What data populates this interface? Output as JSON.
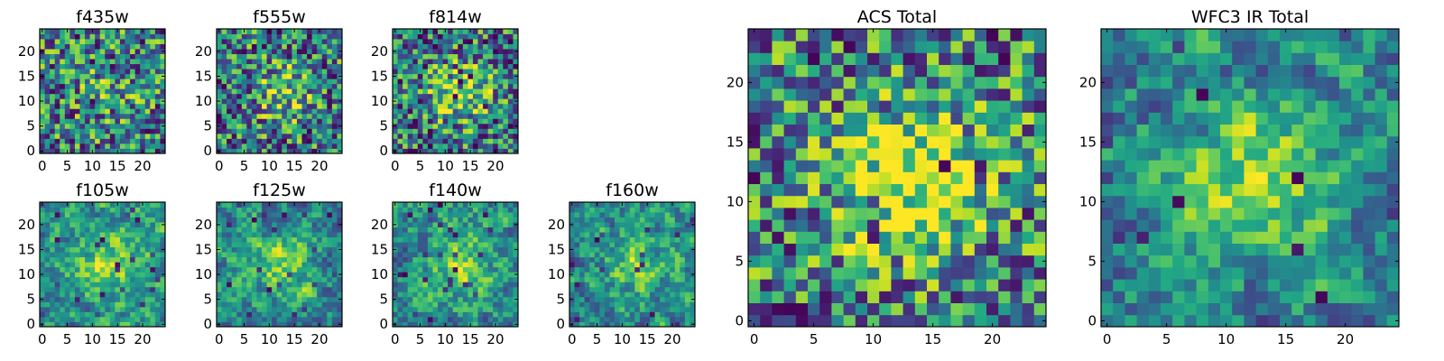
{
  "figure": {
    "description_colormap": "viridis"
  },
  "chart_data": [
    {
      "type": "heatmap",
      "title": "f435w",
      "grid_size": 25,
      "seed": 11,
      "smooth": 0,
      "blob": 0.15,
      "bias": 0.45,
      "dark_frac": 0.07,
      "xticks": [
        0,
        5,
        10,
        15,
        20
      ],
      "yticks": [
        0,
        5,
        10,
        15,
        20
      ],
      "xlim": [
        -0.5,
        24.5
      ],
      "ylim": [
        -0.5,
        24.5
      ]
    },
    {
      "type": "heatmap",
      "title": "f555w",
      "grid_size": 25,
      "seed": 23,
      "smooth": 0,
      "blob": 0.3,
      "bias": 0.42,
      "dark_frac": 0.07,
      "xticks": [
        0,
        5,
        10,
        15,
        20
      ],
      "yticks": [
        0,
        5,
        10,
        15,
        20
      ],
      "xlim": [
        -0.5,
        24.5
      ],
      "ylim": [
        -0.5,
        24.5
      ]
    },
    {
      "type": "heatmap",
      "title": "f814w",
      "grid_size": 25,
      "seed": 37,
      "smooth": 0,
      "blob": 0.45,
      "bias": 0.4,
      "dark_frac": 0.06,
      "xticks": [
        0,
        5,
        10,
        15,
        20
      ],
      "yticks": [
        0,
        5,
        10,
        15,
        20
      ],
      "xlim": [
        -0.5,
        24.5
      ],
      "ylim": [
        -0.5,
        24.5
      ]
    },
    {
      "type": "heatmap",
      "title": "f105w",
      "grid_size": 25,
      "seed": 41,
      "smooth": 1,
      "blob": 0.35,
      "bias": 0.5,
      "dark_frac": 0.03,
      "xticks": [
        0,
        5,
        10,
        15,
        20
      ],
      "yticks": [
        0,
        5,
        10,
        15,
        20
      ],
      "xlim": [
        -0.5,
        24.5
      ],
      "ylim": [
        -0.5,
        24.5
      ]
    },
    {
      "type": "heatmap",
      "title": "f125w",
      "grid_size": 25,
      "seed": 53,
      "smooth": 1,
      "blob": 0.3,
      "bias": 0.48,
      "dark_frac": 0.04,
      "xticks": [
        0,
        5,
        10,
        15,
        20
      ],
      "yticks": [
        0,
        5,
        10,
        15,
        20
      ],
      "xlim": [
        -0.5,
        24.5
      ],
      "ylim": [
        -0.5,
        24.5
      ]
    },
    {
      "type": "heatmap",
      "title": "f140w",
      "grid_size": 25,
      "seed": 67,
      "smooth": 1,
      "blob": 0.3,
      "bias": 0.5,
      "dark_frac": 0.03,
      "xticks": [
        0,
        5,
        10,
        15,
        20
      ],
      "yticks": [
        0,
        5,
        10,
        15,
        20
      ],
      "xlim": [
        -0.5,
        24.5
      ],
      "ylim": [
        -0.5,
        24.5
      ]
    },
    {
      "type": "heatmap",
      "title": "f160w",
      "grid_size": 25,
      "seed": 79,
      "smooth": 1,
      "blob": 0.3,
      "bias": 0.48,
      "dark_frac": 0.03,
      "xticks": [
        0,
        5,
        10,
        15,
        20
      ],
      "yticks": [
        0,
        5,
        10,
        15,
        20
      ],
      "xlim": [
        -0.5,
        24.5
      ],
      "ylim": [
        -0.5,
        24.5
      ]
    },
    {
      "type": "heatmap",
      "title": "ACS Total",
      "grid_size": 25,
      "seed": 97,
      "smooth": 0,
      "blob": 0.55,
      "bias": 0.45,
      "dark_frac": 0.05,
      "xticks": [
        0,
        5,
        10,
        15,
        20
      ],
      "yticks": [
        0,
        5,
        10,
        15,
        20
      ],
      "xlim": [
        -0.5,
        24.5
      ],
      "ylim": [
        -0.5,
        24.5
      ]
    },
    {
      "type": "heatmap",
      "title": "WFC3 IR Total",
      "grid_size": 25,
      "seed": 101,
      "smooth": 1,
      "blob": 0.45,
      "bias": 0.45,
      "dark_frac": 0.02,
      "xticks": [
        0,
        5,
        10,
        15,
        20
      ],
      "yticks": [
        0,
        5,
        10,
        15,
        20
      ],
      "xlim": [
        -0.5,
        24.5
      ],
      "ylim": [
        -0.5,
        24.5
      ]
    }
  ],
  "colors": {
    "viridis_low": "#440154",
    "viridis_mid": "#21918c",
    "viridis_high": "#fde725"
  }
}
